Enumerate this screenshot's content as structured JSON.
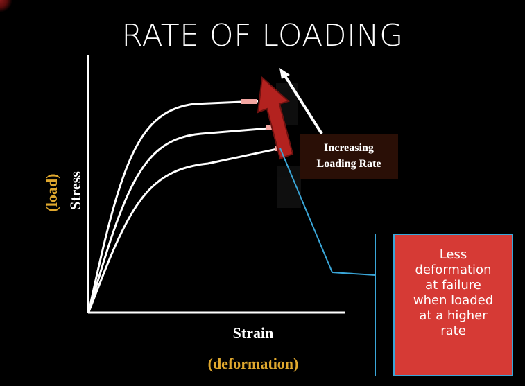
{
  "title": "RATE OF LOADING",
  "axes": {
    "y_label": "Stress",
    "y_label_paren": "(load)",
    "x_label": "Strain",
    "x_label_paren": "(deformation)"
  },
  "rate_label": {
    "line1": "Increasing",
    "line2": "Loading Rate"
  },
  "note": {
    "lines": [
      "Less",
      "deformation",
      "at failure",
      "when loaded",
      "at a higher",
      "rate"
    ]
  },
  "colors": {
    "background": "#000000",
    "text": "#ffffff",
    "paren_text": "#e0a82e",
    "arrow_fill": "#b3221f",
    "note_fill": "#d63a35",
    "callout_line": "#3aa6d8"
  }
}
